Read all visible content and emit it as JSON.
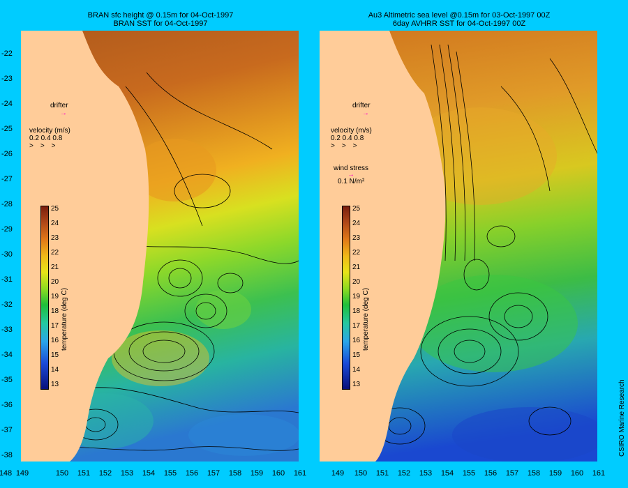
{
  "left_panel": {
    "title_line1": "BRAN sfc height @ 0.15m for 04-Oct-1997",
    "title_line2": "BRAN SST for 04-Oct-1997",
    "drifter_label": "drifter",
    "velocity_label": "velocity (m/s)",
    "velocity_scale": "0.2 0.4 0.8"
  },
  "right_panel": {
    "title_line1": "Au3 Altimetric sea level  @0.15m  for 03-Oct-1997 00Z",
    "title_line2": "6day AVHRR SST for 04-Oct-1997 00Z",
    "drifter_label": "drifter",
    "velocity_label": "velocity (m/s)",
    "velocity_scale": "0.2 0.4 0.8",
    "wind_label": "wind stress",
    "wind_scale": "0.1 N/m²"
  },
  "colorbar": {
    "label": "temperature (deg C)",
    "ticks": [
      "25",
      "24",
      "23",
      "22",
      "21",
      "20",
      "19",
      "18",
      "17",
      "16",
      "15",
      "14",
      "13"
    ]
  },
  "lat_ticks": [
    "-22",
    "-23",
    "-24",
    "-25",
    "-26",
    "-27",
    "-28",
    "-29",
    "-30",
    "-31",
    "-32",
    "-33",
    "-34",
    "-35",
    "-36",
    "-37",
    "-38"
  ],
  "lon_ticks": [
    "148",
    "149",
    "150",
    "151",
    "152",
    "153",
    "154",
    "155",
    "156",
    "157",
    "158",
    "159",
    "160",
    "161"
  ],
  "credit": "CSIRO Marine Research",
  "colors": {
    "background": "#00ccff",
    "land": "#ffcc99",
    "warm": "#b0521e",
    "cool": "#1a4ad8"
  }
}
